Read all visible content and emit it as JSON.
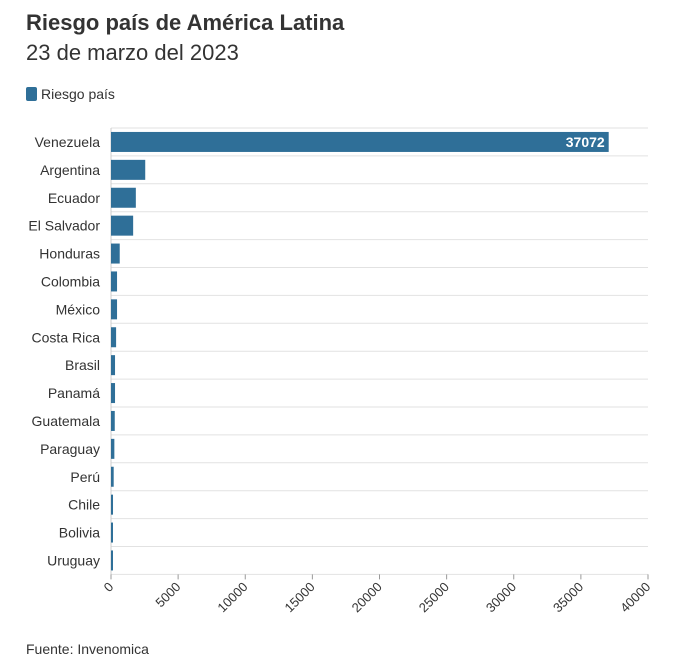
{
  "title": "Riesgo país de América Latina",
  "subtitle": "23 de marzo del 2023",
  "source": "Fuente: Invenomica",
  "colors": {
    "bar": "#2f6f98",
    "grid": "#e2e2e2",
    "text": "#333333"
  },
  "legend": {
    "label": "Riesgo país"
  },
  "chart_data": {
    "type": "bar",
    "orientation": "horizontal",
    "categories": [
      "Venezuela",
      "Argentina",
      "Ecuador",
      "El Salvador",
      "Honduras",
      "Colombia",
      "México",
      "Costa Rica",
      "Brasil",
      "Panamá",
      "Guatemala",
      "Paraguay",
      "Perú",
      "Chile",
      "Bolivia",
      "Uruguay"
    ],
    "series": [
      {
        "name": "Riesgo país",
        "values": [
          37072,
          2550,
          1850,
          1650,
          650,
          450,
          450,
          380,
          300,
          300,
          280,
          250,
          200,
          150,
          100,
          100
        ]
      }
    ],
    "data_labels": {
      "Venezuela": "37072"
    },
    "xlim": [
      0,
      40000
    ],
    "xticks": [
      0,
      5000,
      10000,
      15000,
      20000,
      25000,
      30000,
      35000,
      40000
    ],
    "grid": true,
    "legend_position": "top-left"
  }
}
